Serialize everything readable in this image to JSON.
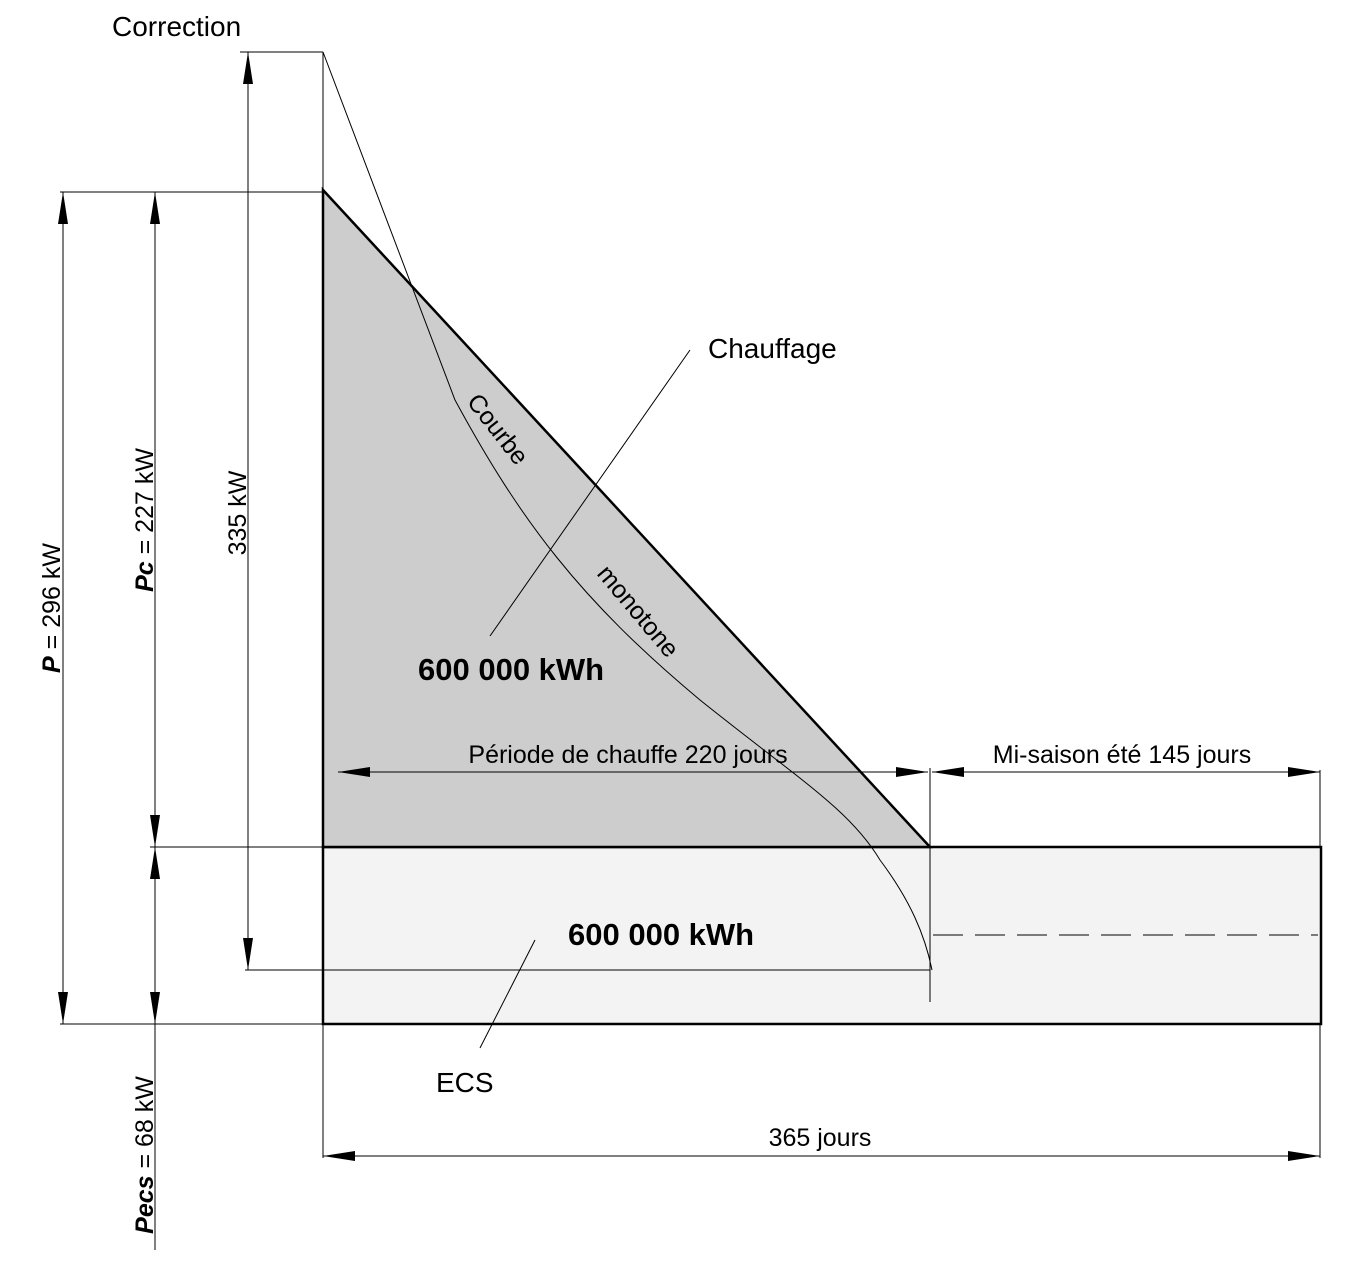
{
  "labels": {
    "correction": "Correction",
    "chauffage": "Chauffage",
    "ecs": "ECS",
    "energy_heating": "600 000 kWh",
    "energy_ecs": "600 000 kWh",
    "courbe_word1": "Courbe",
    "courbe_word2": "monotone"
  },
  "dimensions": {
    "p_symbol": "P",
    "p_value": " = 296 kW",
    "pc_symbol": "Pc",
    "pc_value": " = 227 kW",
    "pecs_symbol": "Pecs",
    "pecs_value": " = 68 kW",
    "correction_value": "335 kW",
    "heating_period": "Période de chauffe 220 jours",
    "summer_period": "Mi-saison été 145 jours",
    "year": "365 jours"
  },
  "colors": {
    "heating_fill": "#cdcdcd",
    "ecs_fill": "#f3f3f3",
    "line": "#000000"
  }
}
